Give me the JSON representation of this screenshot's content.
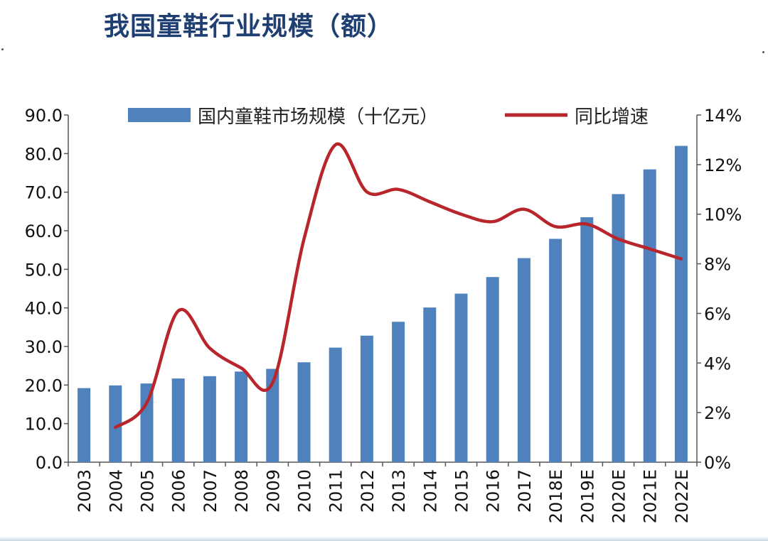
{
  "title": "我国童鞋行业规模（额）",
  "chart_data": {
    "type": "bar",
    "categories": [
      "2003",
      "2004",
      "2005",
      "2006",
      "2007",
      "2008",
      "2009",
      "2010",
      "2011",
      "2012",
      "2013",
      "2014",
      "2015",
      "2016",
      "2017",
      "2018E",
      "2019E",
      "2020E",
      "2021E",
      "2022E"
    ],
    "series": [
      {
        "name": "国内童鞋市场规模（十亿元）",
        "type": "bar",
        "axis": "left",
        "color": "#4f81bd",
        "values": [
          19.2,
          19.9,
          20.4,
          21.7,
          22.3,
          23.5,
          24.2,
          25.9,
          29.7,
          32.8,
          36.4,
          40.1,
          43.7,
          48.0,
          52.9,
          57.9,
          63.5,
          69.5,
          75.9,
          82.0
        ]
      },
      {
        "name": "同比增速",
        "type": "line",
        "axis": "right",
        "color": "#b8262c",
        "values": [
          null,
          1.4,
          2.4,
          6.1,
          4.6,
          3.8,
          3.2,
          9.0,
          12.8,
          10.9,
          11.0,
          10.5,
          10.0,
          9.7,
          10.2,
          9.5,
          9.6,
          9.0,
          8.6,
          8.2
        ]
      }
    ],
    "y_left": {
      "ylim": [
        0,
        90
      ],
      "ticks": [
        "0.0",
        "10.0",
        "20.0",
        "30.0",
        "40.0",
        "50.0",
        "60.0",
        "70.0",
        "80.0",
        "90.0"
      ]
    },
    "y_right": {
      "ylim": [
        0,
        14
      ],
      "ticks": [
        "0%",
        "2%",
        "4%",
        "6%",
        "8%",
        "10%",
        "12%",
        "14%"
      ]
    },
    "legend": {
      "placement": "top-center"
    },
    "grid": false
  }
}
